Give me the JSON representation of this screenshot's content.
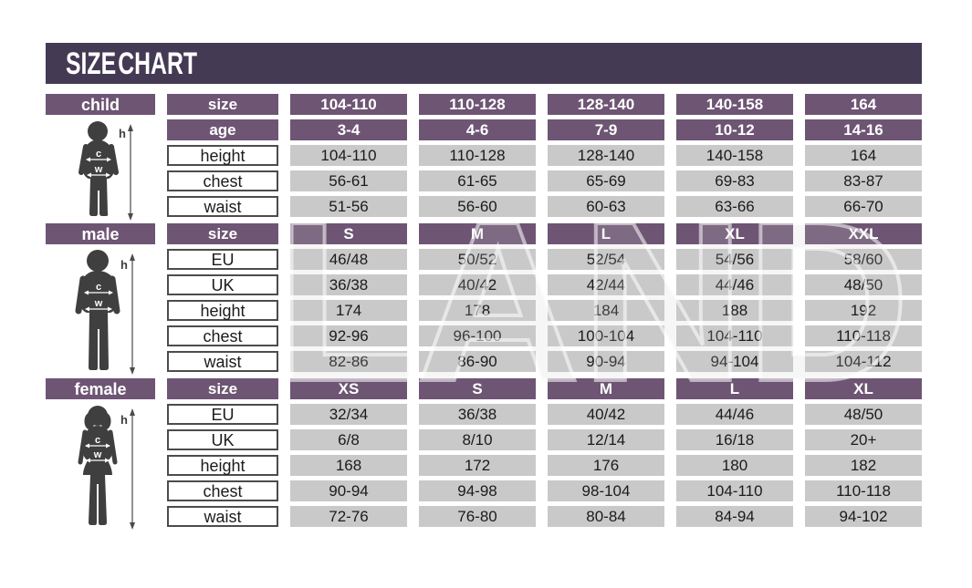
{
  "title": "SIZE CHART",
  "watermark_text": "LAND",
  "figure_annotations": {
    "height_label": "h",
    "chest_label": "c",
    "waist_label": "w"
  },
  "colors": {
    "banner": "#443a54",
    "header_purple": "#6e5574",
    "cell_gray": "#c9c9c9",
    "silhouette": "#3f3f3f",
    "text_dark": "#1b1b1b"
  },
  "sections": [
    {
      "id": "child",
      "label": "child",
      "rows": [
        {
          "label": "size",
          "header": true,
          "values": [
            "104-110",
            "110-128",
            "128-140",
            "140-158",
            "164"
          ]
        },
        {
          "label": "age",
          "header": true,
          "values": [
            "3-4",
            "4-6",
            "7-9",
            "10-12",
            "14-16"
          ]
        },
        {
          "label": "height",
          "header": false,
          "values": [
            "104-110",
            "110-128",
            "128-140",
            "140-158",
            "164"
          ]
        },
        {
          "label": "chest",
          "header": false,
          "values": [
            "56-61",
            "61-65",
            "65-69",
            "69-83",
            "83-87"
          ]
        },
        {
          "label": "waist",
          "header": false,
          "values": [
            "51-56",
            "56-60",
            "60-63",
            "63-66",
            "66-70"
          ]
        }
      ]
    },
    {
      "id": "male",
      "label": "male",
      "rows": [
        {
          "label": "size",
          "header": true,
          "values": [
            "S",
            "M",
            "L",
            "XL",
            "XXL"
          ]
        },
        {
          "label": "EU",
          "header": false,
          "values": [
            "46/48",
            "50/52",
            "52/54",
            "54/56",
            "58/60"
          ]
        },
        {
          "label": "UK",
          "header": false,
          "values": [
            "36/38",
            "40/42",
            "42/44",
            "44/46",
            "48/50"
          ]
        },
        {
          "label": "height",
          "header": false,
          "values": [
            "174",
            "178",
            "184",
            "188",
            "192"
          ]
        },
        {
          "label": "chest",
          "header": false,
          "values": [
            "92-96",
            "96-100",
            "100-104",
            "104-110",
            "110-118"
          ]
        },
        {
          "label": "waist",
          "header": false,
          "values": [
            "82-86",
            "86-90",
            "90-94",
            "94-104",
            "104-112"
          ]
        }
      ]
    },
    {
      "id": "female",
      "label": "female",
      "rows": [
        {
          "label": "size",
          "header": true,
          "values": [
            "XS",
            "S",
            "M",
            "L",
            "XL"
          ]
        },
        {
          "label": "EU",
          "header": false,
          "values": [
            "32/34",
            "36/38",
            "40/42",
            "44/46",
            "48/50"
          ]
        },
        {
          "label": "UK",
          "header": false,
          "values": [
            "6/8",
            "8/10",
            "12/14",
            "16/18",
            "20+"
          ]
        },
        {
          "label": "height",
          "header": false,
          "values": [
            "168",
            "172",
            "176",
            "180",
            "182"
          ]
        },
        {
          "label": "chest",
          "header": false,
          "values": [
            "90-94",
            "94-98",
            "98-104",
            "104-110",
            "110-118"
          ]
        },
        {
          "label": "waist",
          "header": false,
          "values": [
            "72-76",
            "76-80",
            "80-84",
            "84-94",
            "94-102"
          ]
        }
      ]
    }
  ],
  "chart_data": [
    {
      "type": "table",
      "title": "child",
      "row_labels": [
        "size",
        "age",
        "height",
        "chest",
        "waist"
      ],
      "rows": [
        [
          "104-110",
          "110-128",
          "128-140",
          "140-158",
          "164"
        ],
        [
          "3-4",
          "4-6",
          "7-9",
          "10-12",
          "14-16"
        ],
        [
          "104-110",
          "110-128",
          "128-140",
          "140-158",
          "164"
        ],
        [
          "56-61",
          "61-65",
          "65-69",
          "69-83",
          "83-87"
        ],
        [
          "51-56",
          "56-60",
          "60-63",
          "63-66",
          "66-70"
        ]
      ]
    },
    {
      "type": "table",
      "title": "male",
      "row_labels": [
        "size",
        "EU",
        "UK",
        "height",
        "chest",
        "waist"
      ],
      "rows": [
        [
          "S",
          "M",
          "L",
          "XL",
          "XXL"
        ],
        [
          "46/48",
          "50/52",
          "52/54",
          "54/56",
          "58/60"
        ],
        [
          "36/38",
          "40/42",
          "42/44",
          "44/46",
          "48/50"
        ],
        [
          "174",
          "178",
          "184",
          "188",
          "192"
        ],
        [
          "92-96",
          "96-100",
          "100-104",
          "104-110",
          "110-118"
        ],
        [
          "82-86",
          "86-90",
          "90-94",
          "94-104",
          "104-112"
        ]
      ]
    },
    {
      "type": "table",
      "title": "female",
      "row_labels": [
        "size",
        "EU",
        "UK",
        "height",
        "chest",
        "waist"
      ],
      "rows": [
        [
          "XS",
          "S",
          "M",
          "L",
          "XL"
        ],
        [
          "32/34",
          "36/38",
          "40/42",
          "44/46",
          "48/50"
        ],
        [
          "6/8",
          "8/10",
          "12/14",
          "16/18",
          "20+"
        ],
        [
          "168",
          "172",
          "176",
          "180",
          "182"
        ],
        [
          "90-94",
          "94-98",
          "98-104",
          "104-110",
          "110-118"
        ],
        [
          "72-76",
          "76-80",
          "80-84",
          "84-94",
          "94-102"
        ]
      ]
    }
  ]
}
